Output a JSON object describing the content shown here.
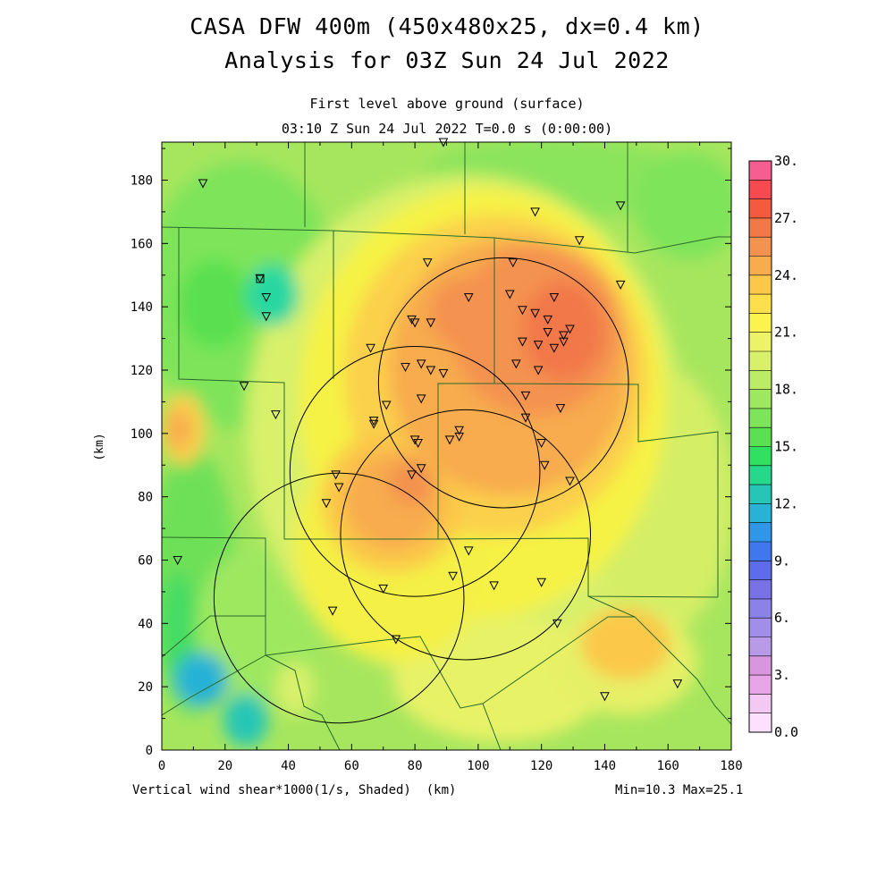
{
  "title_line1": "CASA DFW 400m (450x480x25, dx=0.4 km)",
  "title_line2": "Analysis for 03Z Sun 24 Jul 2022",
  "subtitle_line1": "First level above ground (surface)",
  "subtitle_line2": "03:10 Z Sun 24 Jul 2022   T=0.0 s (0:00:00)",
  "x_axis": {
    "label": "(km)",
    "range": [
      0,
      180
    ],
    "ticks": [
      "0",
      "20",
      "40",
      "60",
      "80",
      "100",
      "120",
      "140",
      "160",
      "180"
    ]
  },
  "y_axis": {
    "label": "(km)",
    "range": [
      0,
      192
    ],
    "ticks": [
      "0",
      "20",
      "40",
      "60",
      "80",
      "100",
      "120",
      "140",
      "160",
      "180"
    ]
  },
  "colorbar": {
    "labels": [
      "0.0",
      "3.",
      "6.",
      "9.",
      "12.",
      "15.",
      "18.",
      "21.",
      "24.",
      "27.",
      "30."
    ],
    "colors": [
      "#fde0fd",
      "#f3c8f3",
      "#e8a6e8",
      "#d995dd",
      "#b89ae6",
      "#a08ee8",
      "#8a82e6",
      "#7872e6",
      "#5e6cec",
      "#3f78ee",
      "#2f96e8",
      "#28b2d6",
      "#26c6b6",
      "#26d88a",
      "#30e060",
      "#5ae050",
      "#7ee45a",
      "#9ee860",
      "#bcec66",
      "#d8f06a",
      "#eef266",
      "#fbf44c",
      "#fbe04c",
      "#fbc84a",
      "#f8ac4e",
      "#f49250",
      "#f27848",
      "#f45a3e",
      "#f64a50",
      "#f65e92"
    ]
  },
  "field": {
    "name": "Vertical wind shear*1000(1/s, Shaded)",
    "units_label": "(km)",
    "min_label": "Min=10.3",
    "max_label": "Max=25.1",
    "min": 10.3,
    "max": 25.1
  },
  "radar_ranges": [
    {
      "x": 108,
      "y": 116,
      "r": 39.5
    },
    {
      "x": 80,
      "y": 88,
      "r": 39.5
    },
    {
      "x": 96,
      "y": 68,
      "r": 39.5
    },
    {
      "x": 56,
      "y": 48,
      "r": 39.5
    }
  ],
  "stations": [
    [
      13,
      179
    ],
    [
      89,
      192
    ],
    [
      118,
      170
    ],
    [
      145,
      172
    ],
    [
      132,
      161
    ],
    [
      31,
      149
    ],
    [
      33,
      143
    ],
    [
      33,
      137
    ],
    [
      84,
      154
    ],
    [
      111,
      154
    ],
    [
      145,
      147
    ],
    [
      97,
      143
    ],
    [
      110,
      144
    ],
    [
      124,
      143
    ],
    [
      79,
      136
    ],
    [
      80,
      135
    ],
    [
      85,
      135
    ],
    [
      114,
      139
    ],
    [
      118,
      138
    ],
    [
      122,
      136
    ],
    [
      129,
      133
    ],
    [
      122,
      132
    ],
    [
      127,
      131
    ],
    [
      114,
      129
    ],
    [
      119,
      128
    ],
    [
      124,
      127
    ],
    [
      127,
      129
    ],
    [
      66,
      127
    ],
    [
      77,
      121
    ],
    [
      82,
      122
    ],
    [
      85,
      120
    ],
    [
      89,
      119
    ],
    [
      112,
      122
    ],
    [
      119,
      120
    ],
    [
      26,
      115
    ],
    [
      71,
      109
    ],
    [
      82,
      111
    ],
    [
      115,
      112
    ],
    [
      126,
      108
    ],
    [
      36,
      106
    ],
    [
      67,
      104
    ],
    [
      67,
      103
    ],
    [
      80,
      98
    ],
    [
      81,
      97
    ],
    [
      91,
      98
    ],
    [
      94,
      101
    ],
    [
      94,
      99
    ],
    [
      120,
      97
    ],
    [
      115,
      105
    ],
    [
      55,
      87
    ],
    [
      56,
      83
    ],
    [
      52,
      78
    ],
    [
      79,
      87
    ],
    [
      82,
      89
    ],
    [
      121,
      90
    ],
    [
      129,
      85
    ],
    [
      5,
      60
    ],
    [
      97,
      63
    ],
    [
      70,
      51
    ],
    [
      92,
      55
    ],
    [
      105,
      52
    ],
    [
      120,
      53
    ],
    [
      54,
      44
    ],
    [
      125,
      40
    ],
    [
      74,
      35
    ],
    [
      140,
      17
    ],
    [
      163,
      21
    ]
  ]
}
